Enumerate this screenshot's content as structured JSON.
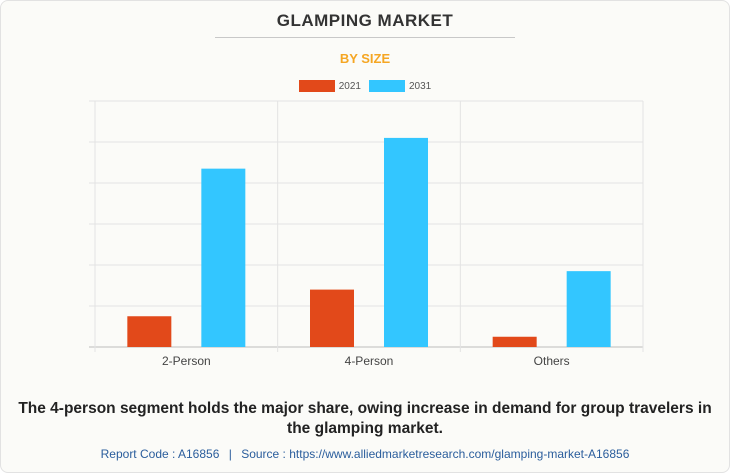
{
  "header": {
    "title": "GLAMPING MARKET",
    "subtitle": "BY SIZE"
  },
  "colors": {
    "series_2021": "#e2491a",
    "series_2031": "#33c6ff",
    "subtitle": "#f5a623"
  },
  "chart_data": {
    "type": "bar",
    "categories": [
      "2-Person",
      "4-Person",
      "Others"
    ],
    "series": [
      {
        "name": "2021",
        "values": [
          1.5,
          2.8,
          0.5
        ]
      },
      {
        "name": "2031",
        "values": [
          8.7,
          10.2,
          3.7
        ]
      }
    ],
    "ylim": [
      0,
      12
    ],
    "y_gridlines": 6,
    "y_tick_labels_visible": false,
    "grid": true,
    "legend": "top-center"
  },
  "caption": "The 4-person segment holds the major share, owing increase in demand for group travelers in the glamping market.",
  "footer": {
    "report_code": "Report Code : A16856",
    "separator": "|",
    "source": "Source : https://www.alliedmarketresearch.com/glamping-market-A16856"
  }
}
